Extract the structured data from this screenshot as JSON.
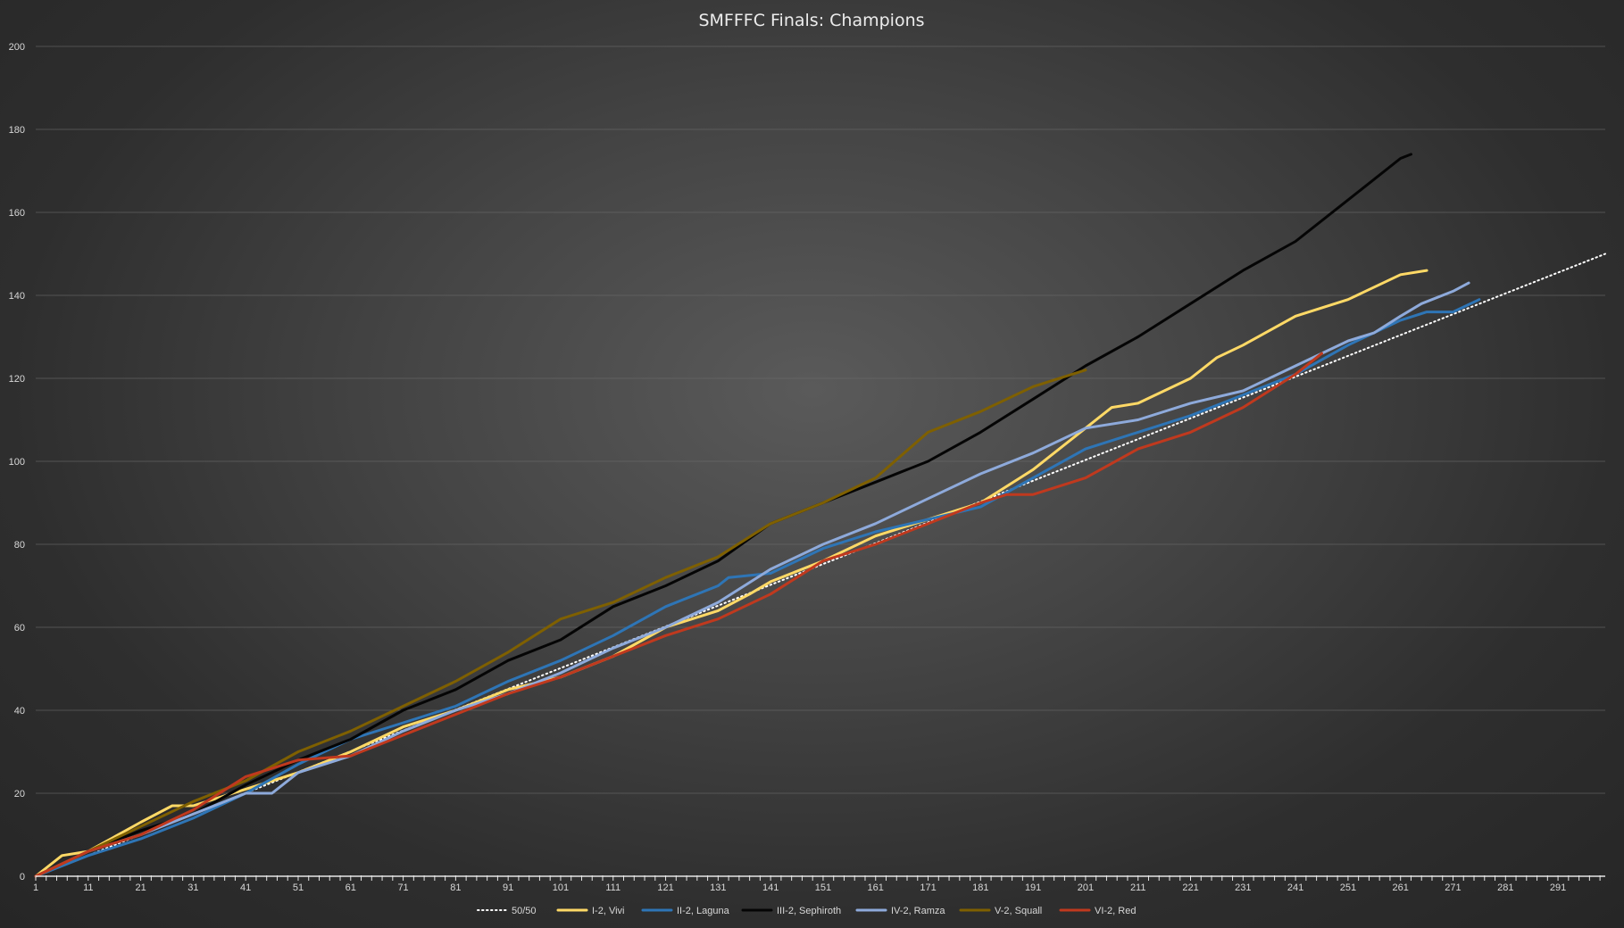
{
  "chart_data": {
    "type": "line",
    "title": "SMFFFC Finals: Champions",
    "xlabel": "",
    "ylabel": "",
    "xlim": [
      1,
      300
    ],
    "ylim": [
      0,
      200
    ],
    "x_tick_labels": [
      "1",
      "11",
      "21",
      "31",
      "41",
      "51",
      "61",
      "71",
      "81",
      "91",
      "101",
      "111",
      "121",
      "131",
      "141",
      "151",
      "161",
      "171",
      "181",
      "191",
      "201",
      "211",
      "221",
      "231",
      "241",
      "251",
      "261",
      "271",
      "281",
      "291"
    ],
    "y_tick_labels": [
      "0",
      "20",
      "40",
      "60",
      "80",
      "100",
      "120",
      "140",
      "160",
      "180",
      "200"
    ],
    "grid": "horizontal",
    "legend_position": "bottom",
    "series": [
      {
        "name": "50/50",
        "color": "#ffffff",
        "dash": "dotted",
        "points": [
          [
            1,
            0
          ],
          [
            300,
            150
          ]
        ]
      },
      {
        "name": "I-2, Vivi",
        "color": "#ffd966",
        "dash": "solid",
        "points": [
          [
            1,
            0
          ],
          [
            6,
            5
          ],
          [
            11,
            6
          ],
          [
            21,
            13
          ],
          [
            27,
            17
          ],
          [
            31,
            17
          ],
          [
            41,
            21
          ],
          [
            51,
            25
          ],
          [
            61,
            30
          ],
          [
            71,
            36
          ],
          [
            81,
            40
          ],
          [
            91,
            45
          ],
          [
            101,
            48
          ],
          [
            111,
            53
          ],
          [
            121,
            60
          ],
          [
            131,
            64
          ],
          [
            137,
            68
          ],
          [
            141,
            71
          ],
          [
            151,
            76
          ],
          [
            161,
            82
          ],
          [
            171,
            86
          ],
          [
            181,
            90
          ],
          [
            191,
            98
          ],
          [
            201,
            108
          ],
          [
            206,
            113
          ],
          [
            211,
            114
          ],
          [
            221,
            120
          ],
          [
            226,
            125
          ],
          [
            231,
            128
          ],
          [
            241,
            135
          ],
          [
            251,
            139
          ],
          [
            261,
            145
          ],
          [
            266,
            146
          ]
        ]
      },
      {
        "name": "II-2, Laguna",
        "color": "#2e75b6",
        "dash": "solid",
        "points": [
          [
            1,
            0
          ],
          [
            11,
            5
          ],
          [
            21,
            9
          ],
          [
            31,
            14
          ],
          [
            41,
            20
          ],
          [
            51,
            27
          ],
          [
            61,
            33
          ],
          [
            71,
            37
          ],
          [
            81,
            41
          ],
          [
            91,
            47
          ],
          [
            101,
            52
          ],
          [
            111,
            58
          ],
          [
            121,
            65
          ],
          [
            131,
            70
          ],
          [
            133,
            72
          ],
          [
            141,
            73
          ],
          [
            151,
            79
          ],
          [
            161,
            83
          ],
          [
            171,
            86
          ],
          [
            181,
            89
          ],
          [
            191,
            96
          ],
          [
            201,
            103
          ],
          [
            211,
            107
          ],
          [
            221,
            111
          ],
          [
            231,
            116
          ],
          [
            241,
            121
          ],
          [
            251,
            128
          ],
          [
            261,
            134
          ],
          [
            266,
            136
          ],
          [
            271,
            136
          ],
          [
            276,
            139
          ]
        ]
      },
      {
        "name": "III-2, Sephiroth",
        "color": "#050505",
        "dash": "solid",
        "points": [
          [
            1,
            0
          ],
          [
            11,
            6
          ],
          [
            21,
            11
          ],
          [
            31,
            15
          ],
          [
            41,
            22
          ],
          [
            51,
            28
          ],
          [
            61,
            33
          ],
          [
            71,
            40
          ],
          [
            81,
            45
          ],
          [
            91,
            52
          ],
          [
            101,
            57
          ],
          [
            111,
            65
          ],
          [
            121,
            70
          ],
          [
            131,
            76
          ],
          [
            141,
            85
          ],
          [
            151,
            90
          ],
          [
            161,
            95
          ],
          [
            171,
            100
          ],
          [
            181,
            107
          ],
          [
            191,
            115
          ],
          [
            201,
            123
          ],
          [
            211,
            130
          ],
          [
            221,
            138
          ],
          [
            231,
            146
          ],
          [
            241,
            153
          ],
          [
            251,
            163
          ],
          [
            256,
            168
          ],
          [
            261,
            173
          ],
          [
            263,
            174
          ]
        ]
      },
      {
        "name": "IV-2, Ramza",
        "color": "#8eaadb",
        "dash": "solid",
        "points": [
          [
            1,
            0
          ],
          [
            11,
            6
          ],
          [
            16,
            8
          ],
          [
            21,
            10
          ],
          [
            31,
            15
          ],
          [
            41,
            20
          ],
          [
            46,
            20
          ],
          [
            51,
            25
          ],
          [
            61,
            29
          ],
          [
            71,
            35
          ],
          [
            81,
            40
          ],
          [
            91,
            44
          ],
          [
            101,
            49
          ],
          [
            111,
            55
          ],
          [
            121,
            60
          ],
          [
            131,
            66
          ],
          [
            141,
            74
          ],
          [
            151,
            80
          ],
          [
            161,
            85
          ],
          [
            171,
            91
          ],
          [
            181,
            97
          ],
          [
            191,
            102
          ],
          [
            201,
            108
          ],
          [
            211,
            110
          ],
          [
            221,
            114
          ],
          [
            231,
            117
          ],
          [
            241,
            123
          ],
          [
            251,
            129
          ],
          [
            256,
            131
          ],
          [
            261,
            135
          ],
          [
            265,
            138
          ],
          [
            271,
            141
          ],
          [
            274,
            143
          ]
        ]
      },
      {
        "name": "V-2, Squall",
        "color": "#7f6000",
        "dash": "solid",
        "points": [
          [
            1,
            0
          ],
          [
            11,
            6
          ],
          [
            21,
            12
          ],
          [
            31,
            18
          ],
          [
            41,
            23
          ],
          [
            51,
            30
          ],
          [
            61,
            35
          ],
          [
            71,
            41
          ],
          [
            81,
            47
          ],
          [
            91,
            54
          ],
          [
            101,
            62
          ],
          [
            111,
            66
          ],
          [
            121,
            72
          ],
          [
            131,
            77
          ],
          [
            141,
            85
          ],
          [
            151,
            90
          ],
          [
            161,
            96
          ],
          [
            171,
            107
          ],
          [
            181,
            112
          ],
          [
            191,
            118
          ],
          [
            201,
            122
          ]
        ]
      },
      {
        "name": "VI-2, Red",
        "color": "#c0391e",
        "dash": "solid",
        "points": [
          [
            1,
            0
          ],
          [
            11,
            6
          ],
          [
            21,
            10
          ],
          [
            31,
            16
          ],
          [
            41,
            24
          ],
          [
            51,
            28
          ],
          [
            61,
            29
          ],
          [
            71,
            34
          ],
          [
            81,
            39
          ],
          [
            91,
            44
          ],
          [
            101,
            48
          ],
          [
            111,
            53
          ],
          [
            121,
            58
          ],
          [
            131,
            62
          ],
          [
            141,
            68
          ],
          [
            151,
            76
          ],
          [
            161,
            80
          ],
          [
            171,
            85
          ],
          [
            181,
            90
          ],
          [
            186,
            92
          ],
          [
            191,
            92
          ],
          [
            201,
            96
          ],
          [
            211,
            103
          ],
          [
            221,
            107
          ],
          [
            231,
            113
          ],
          [
            241,
            121
          ],
          [
            246,
            126
          ]
        ]
      }
    ]
  }
}
